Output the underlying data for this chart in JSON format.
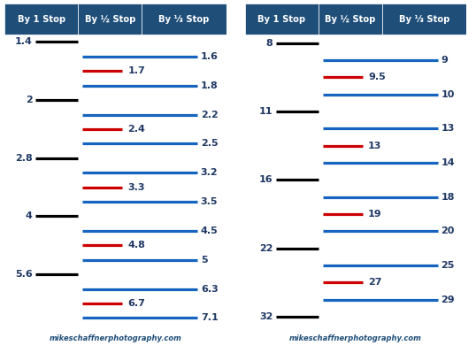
{
  "header_bg": "#1F4E79",
  "header_text_color": "#FFFFFF",
  "panel_bg": "#FFFFFF",
  "border_color": "#1F4E79",
  "text_color_dark": "#1F3864",
  "url_color": "#1F4E79",
  "panel1": {
    "col_headers": [
      "By 1 Stop",
      "By ½ Stop",
      "By ⅓ Stop"
    ],
    "rows": [
      {
        "type": "black",
        "label_left": "1.4",
        "label_right": null
      },
      {
        "type": "blue",
        "label_left": null,
        "label_right": "1.6"
      },
      {
        "type": "red",
        "label_left": null,
        "label_right": "1.7"
      },
      {
        "type": "blue",
        "label_left": null,
        "label_right": "1.8"
      },
      {
        "type": "black",
        "label_left": "2",
        "label_right": null
      },
      {
        "type": "blue",
        "label_left": null,
        "label_right": "2.2"
      },
      {
        "type": "red",
        "label_left": null,
        "label_right": "2.4"
      },
      {
        "type": "blue",
        "label_left": null,
        "label_right": "2.5"
      },
      {
        "type": "black",
        "label_left": "2.8",
        "label_right": null
      },
      {
        "type": "blue",
        "label_left": null,
        "label_right": "3.2"
      },
      {
        "type": "red",
        "label_left": null,
        "label_right": "3.3"
      },
      {
        "type": "blue",
        "label_left": null,
        "label_right": "3.5"
      },
      {
        "type": "black",
        "label_left": "4",
        "label_right": null
      },
      {
        "type": "blue",
        "label_left": null,
        "label_right": "4.5"
      },
      {
        "type": "red",
        "label_left": null,
        "label_right": "4.8"
      },
      {
        "type": "blue",
        "label_left": null,
        "label_right": "5"
      },
      {
        "type": "black",
        "label_left": "5.6",
        "label_right": null
      },
      {
        "type": "blue",
        "label_left": null,
        "label_right": "6.3"
      },
      {
        "type": "red",
        "label_left": null,
        "label_right": "6.7"
      },
      {
        "type": "blue",
        "label_left": null,
        "label_right": "7.1"
      }
    ]
  },
  "panel2": {
    "col_headers": [
      "By 1 Stop",
      "By ½ Stop",
      "By ⅓ Stop"
    ],
    "rows": [
      {
        "type": "black",
        "label_left": "8",
        "label_right": null
      },
      {
        "type": "blue",
        "label_left": null,
        "label_right": "9"
      },
      {
        "type": "red",
        "label_left": null,
        "label_right": "9.5"
      },
      {
        "type": "blue",
        "label_left": null,
        "label_right": "10"
      },
      {
        "type": "black",
        "label_left": "11",
        "label_right": null
      },
      {
        "type": "blue",
        "label_left": null,
        "label_right": "13"
      },
      {
        "type": "red",
        "label_left": null,
        "label_right": "13"
      },
      {
        "type": "blue",
        "label_left": null,
        "label_right": "14"
      },
      {
        "type": "black",
        "label_left": "16",
        "label_right": null
      },
      {
        "type": "blue",
        "label_left": null,
        "label_right": "18"
      },
      {
        "type": "red",
        "label_left": null,
        "label_right": "19"
      },
      {
        "type": "blue",
        "label_left": null,
        "label_right": "20"
      },
      {
        "type": "black",
        "label_left": "22",
        "label_right": null
      },
      {
        "type": "blue",
        "label_left": null,
        "label_right": "25"
      },
      {
        "type": "red",
        "label_left": null,
        "label_right": "27"
      },
      {
        "type": "blue",
        "label_left": null,
        "label_right": "29"
      },
      {
        "type": "black",
        "label_left": "32",
        "label_right": null
      }
    ]
  },
  "black_line_color": "#000000",
  "red_line_color": "#CC0000",
  "blue_line_color": "#1565C0",
  "url_text": "mikeschaffnerphotography.com"
}
